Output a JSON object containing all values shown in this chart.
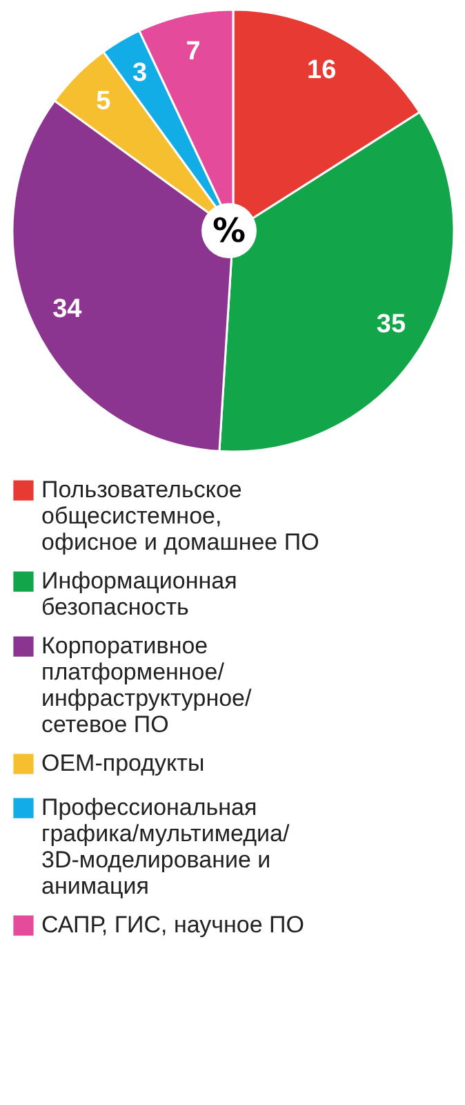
{
  "chart_data": {
    "type": "pie",
    "categories": [
      "Пользовательское общесистемное, офисное и домашнее ПО",
      "Информационная безопасность",
      "Корпоративное платформенное/ инфраструктурное/ сетевое ПО",
      "ОЕМ-продукты",
      "Профессиональная графика/мультимедиа/ 3D-моделирование и анимация",
      "САПР, ГИС, научное ПО"
    ],
    "values": [
      16,
      35,
      34,
      5,
      3,
      7
    ],
    "colors": [
      "#e63a33",
      "#13a54a",
      "#8b3590",
      "#f5bf2f",
      "#12ade6",
      "#e44c9b"
    ],
    "data_labels": true,
    "legend": "bottom",
    "annotations": [
      "%"
    ]
  }
}
